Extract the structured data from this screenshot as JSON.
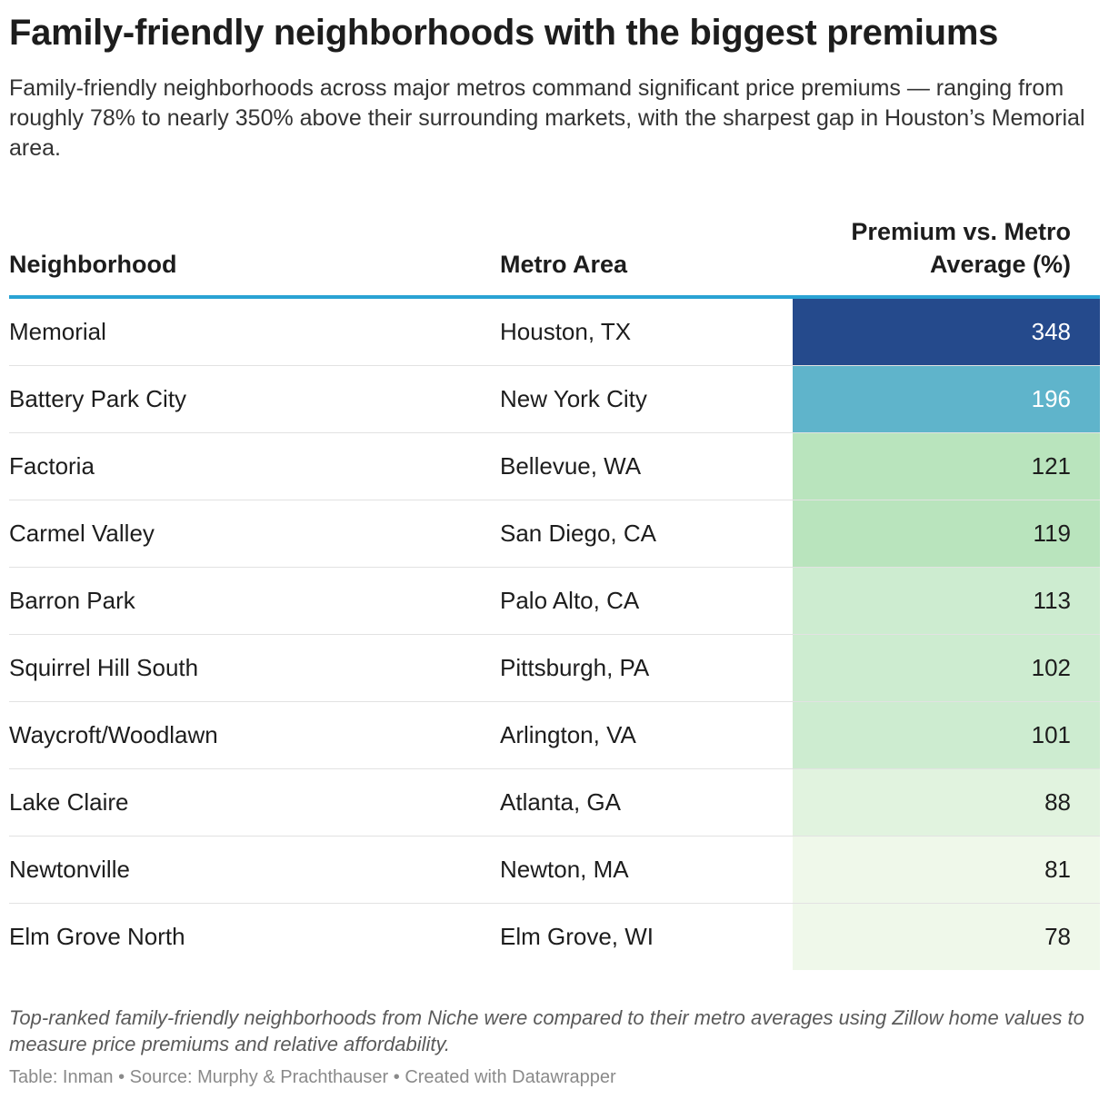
{
  "title": "Family-friendly neighborhoods with the biggest premiums",
  "subtitle": "Family-friendly neighborhoods across major metros command significant price premiums — ranging from roughly 78% to nearly 350% above their surrounding markets, with the sharpest gap in Houston’s Memorial area.",
  "columns": {
    "neighborhood": "Neighborhood",
    "metro": "Metro Area",
    "premium_line1": "Premium vs. Metro",
    "premium_line2": "Average (%)"
  },
  "chart_data": {
    "type": "table",
    "title": "Family-friendly neighborhoods with the biggest premiums",
    "columns": [
      "Neighborhood",
      "Metro Area",
      "Premium vs. Metro Average (%)"
    ],
    "rows": [
      {
        "neighborhood": "Memorial",
        "metro": "Houston, TX",
        "premium": 348
      },
      {
        "neighborhood": "Battery Park City",
        "metro": "New York City",
        "premium": 196
      },
      {
        "neighborhood": "Factoria",
        "metro": "Bellevue, WA",
        "premium": 121
      },
      {
        "neighborhood": "Carmel Valley",
        "metro": "San Diego, CA",
        "premium": 119
      },
      {
        "neighborhood": "Barron Park",
        "metro": "Palo Alto, CA",
        "premium": 113
      },
      {
        "neighborhood": "Squirrel Hill South",
        "metro": "Pittsburgh, PA",
        "premium": 102
      },
      {
        "neighborhood": "Waycroft/Woodlawn",
        "metro": "Arlington, VA",
        "premium": 101
      },
      {
        "neighborhood": "Lake Claire",
        "metro": "Atlanta, GA",
        "premium": 88
      },
      {
        "neighborhood": "Newtonville",
        "metro": "Newton, MA",
        "premium": 81
      },
      {
        "neighborhood": "Elm Grove North",
        "metro": "Elm Grove, WI",
        "premium": 78
      }
    ],
    "color_scale": [
      {
        "min": 300,
        "bg": "#254a8c",
        "fg": "#ffffff"
      },
      {
        "min": 150,
        "bg": "#5fb4cb",
        "fg": "#ffffff"
      },
      {
        "min": 115,
        "bg": "#b9e4bd",
        "fg": "#1d1d1d"
      },
      {
        "min": 100,
        "bg": "#cdecd0",
        "fg": "#1d1d1d"
      },
      {
        "min": 85,
        "bg": "#e1f3df",
        "fg": "#1d1d1d"
      },
      {
        "min": 0,
        "bg": "#eff8ea",
        "fg": "#1d1d1d"
      }
    ]
  },
  "notes": "Top-ranked family-friendly neighborhoods from Niche were compared to their metro averages using Zillow home values to measure price premiums and relative affordability.",
  "credits": "Table: Inman • Source: Murphy & Prachthauser  • Created with Datawrapper"
}
